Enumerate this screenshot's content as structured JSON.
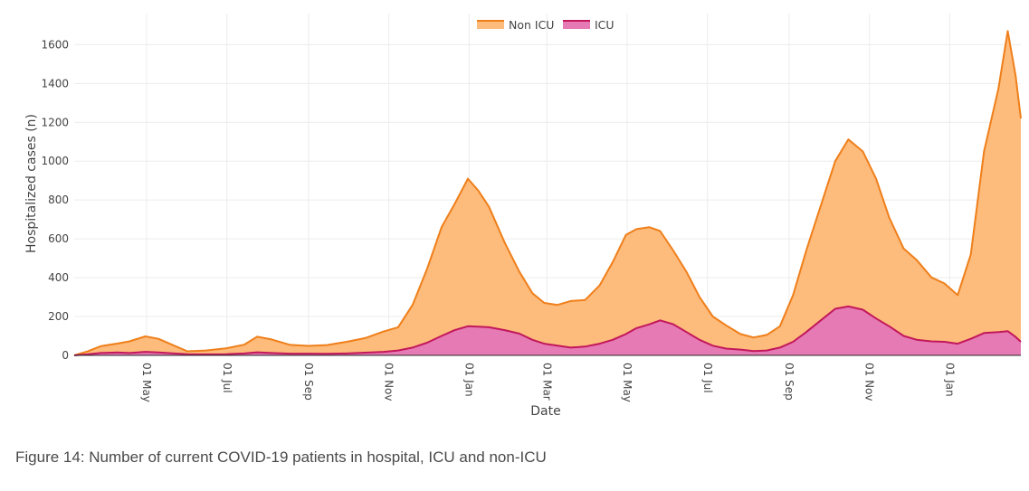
{
  "caption": "Figure 14: Number of current COVID-19 patients in hospital, ICU and non-ICU",
  "chart_data": {
    "type": "area",
    "stacked": true,
    "xlabel": "Date",
    "ylabel": "Hospitalized cases (n)",
    "x_range": [
      "2020-03-07",
      "2022-02-24"
    ],
    "ylim": [
      0,
      1760
    ],
    "y_ticks": [
      0,
      200,
      400,
      600,
      800,
      1000,
      1200,
      1400,
      1600
    ],
    "x_ticks": [
      {
        "date": "2020-05-01",
        "label": "01 May"
      },
      {
        "date": "2020-07-01",
        "label": "01 Jul"
      },
      {
        "date": "2020-09-01",
        "label": "01 Sep"
      },
      {
        "date": "2020-11-01",
        "label": "01 Nov"
      },
      {
        "date": "2021-01-01",
        "label": "01 Jan"
      },
      {
        "date": "2021-03-01",
        "label": "01 Mar"
      },
      {
        "date": "2021-05-01",
        "label": "01 May"
      },
      {
        "date": "2021-07-01",
        "label": "01 Jul"
      },
      {
        "date": "2021-09-01",
        "label": "01 Sep"
      },
      {
        "date": "2021-11-01",
        "label": "01 Nov"
      },
      {
        "date": "2022-01-01",
        "label": "01 Jan"
      }
    ],
    "grid": true,
    "legend": "top-center",
    "series": [
      {
        "name": "ICU",
        "color": "#c2185b",
        "fill": "#e57ab4",
        "points": [
          [
            "2020-03-07",
            0
          ],
          [
            "2020-03-17",
            5
          ],
          [
            "2020-03-27",
            12
          ],
          [
            "2020-04-08",
            15
          ],
          [
            "2020-04-18",
            12
          ],
          [
            "2020-04-30",
            18
          ],
          [
            "2020-05-10",
            15
          ],
          [
            "2020-05-22",
            10
          ],
          [
            "2020-06-01",
            6
          ],
          [
            "2020-06-15",
            5
          ],
          [
            "2020-06-30",
            6
          ],
          [
            "2020-07-14",
            10
          ],
          [
            "2020-07-24",
            16
          ],
          [
            "2020-08-04",
            12
          ],
          [
            "2020-08-18",
            9
          ],
          [
            "2020-09-01",
            9
          ],
          [
            "2020-09-15",
            8
          ],
          [
            "2020-09-30",
            10
          ],
          [
            "2020-10-14",
            14
          ],
          [
            "2020-10-28",
            18
          ],
          [
            "2020-11-08",
            25
          ],
          [
            "2020-11-19",
            40
          ],
          [
            "2020-11-30",
            65
          ],
          [
            "2020-12-11",
            100
          ],
          [
            "2020-12-21",
            130
          ],
          [
            "2020-12-31",
            150
          ],
          [
            "2021-01-08",
            148
          ],
          [
            "2021-01-16",
            145
          ],
          [
            "2021-01-28",
            130
          ],
          [
            "2021-02-08",
            112
          ],
          [
            "2021-02-18",
            80
          ],
          [
            "2021-02-27",
            60
          ],
          [
            "2021-03-09",
            50
          ],
          [
            "2021-03-19",
            40
          ],
          [
            "2021-03-30",
            45
          ],
          [
            "2021-04-10",
            60
          ],
          [
            "2021-04-20",
            80
          ],
          [
            "2021-04-30",
            110
          ],
          [
            "2021-05-08",
            140
          ],
          [
            "2021-05-18",
            160
          ],
          [
            "2021-05-26",
            180
          ],
          [
            "2021-06-05",
            160
          ],
          [
            "2021-06-15",
            120
          ],
          [
            "2021-06-25",
            80
          ],
          [
            "2021-07-05",
            50
          ],
          [
            "2021-07-15",
            35
          ],
          [
            "2021-07-26",
            30
          ],
          [
            "2021-08-05",
            22
          ],
          [
            "2021-08-15",
            25
          ],
          [
            "2021-08-25",
            40
          ],
          [
            "2021-09-04",
            70
          ],
          [
            "2021-09-14",
            120
          ],
          [
            "2021-09-25",
            180
          ],
          [
            "2021-10-06",
            240
          ],
          [
            "2021-10-16",
            252
          ],
          [
            "2021-10-27",
            235
          ],
          [
            "2021-11-06",
            190
          ],
          [
            "2021-11-16",
            150
          ],
          [
            "2021-11-27",
            100
          ],
          [
            "2021-12-07",
            80
          ],
          [
            "2021-12-18",
            72
          ],
          [
            "2021-12-28",
            70
          ],
          [
            "2022-01-07",
            60
          ],
          [
            "2022-01-17",
            85
          ],
          [
            "2022-01-27",
            115
          ],
          [
            "2022-02-07",
            120
          ],
          [
            "2022-02-14",
            125
          ],
          [
            "2022-02-20",
            95
          ],
          [
            "2022-02-24",
            70
          ]
        ]
      },
      {
        "name": "Non ICU",
        "color": "#ef7f1a",
        "fill": "#fdbb7c",
        "points": [
          [
            "2020-03-07",
            0
          ],
          [
            "2020-03-17",
            15
          ],
          [
            "2020-03-27",
            35
          ],
          [
            "2020-04-08",
            45
          ],
          [
            "2020-04-18",
            60
          ],
          [
            "2020-04-30",
            80
          ],
          [
            "2020-05-10",
            70
          ],
          [
            "2020-05-22",
            40
          ],
          [
            "2020-06-01",
            15
          ],
          [
            "2020-06-15",
            20
          ],
          [
            "2020-06-30",
            30
          ],
          [
            "2020-07-14",
            45
          ],
          [
            "2020-07-24",
            80
          ],
          [
            "2020-08-04",
            70
          ],
          [
            "2020-08-18",
            45
          ],
          [
            "2020-09-01",
            40
          ],
          [
            "2020-09-15",
            45
          ],
          [
            "2020-09-30",
            60
          ],
          [
            "2020-10-14",
            75
          ],
          [
            "2020-10-28",
            105
          ],
          [
            "2020-11-08",
            120
          ],
          [
            "2020-11-19",
            220
          ],
          [
            "2020-11-30",
            380
          ],
          [
            "2020-12-11",
            560
          ],
          [
            "2020-12-21",
            650
          ],
          [
            "2020-12-31",
            760
          ],
          [
            "2021-01-08",
            700
          ],
          [
            "2021-01-16",
            620
          ],
          [
            "2021-01-28",
            450
          ],
          [
            "2021-02-08",
            320
          ],
          [
            "2021-02-18",
            240
          ],
          [
            "2021-02-27",
            210
          ],
          [
            "2021-03-09",
            210
          ],
          [
            "2021-03-19",
            240
          ],
          [
            "2021-03-30",
            240
          ],
          [
            "2021-04-10",
            300
          ],
          [
            "2021-04-20",
            400
          ],
          [
            "2021-04-30",
            510
          ],
          [
            "2021-05-08",
            510
          ],
          [
            "2021-05-18",
            500
          ],
          [
            "2021-05-26",
            460
          ],
          [
            "2021-06-05",
            380
          ],
          [
            "2021-06-15",
            310
          ],
          [
            "2021-06-25",
            220
          ],
          [
            "2021-07-05",
            150
          ],
          [
            "2021-07-15",
            120
          ],
          [
            "2021-07-26",
            80
          ],
          [
            "2021-08-05",
            70
          ],
          [
            "2021-08-15",
            80
          ],
          [
            "2021-08-25",
            110
          ],
          [
            "2021-09-04",
            240
          ],
          [
            "2021-09-14",
            420
          ],
          [
            "2021-09-25",
            590
          ],
          [
            "2021-10-06",
            760
          ],
          [
            "2021-10-16",
            860
          ],
          [
            "2021-10-27",
            815
          ],
          [
            "2021-11-06",
            720
          ],
          [
            "2021-11-16",
            560
          ],
          [
            "2021-11-27",
            450
          ],
          [
            "2021-12-07",
            410
          ],
          [
            "2021-12-18",
            330
          ],
          [
            "2021-12-28",
            300
          ],
          [
            "2022-01-07",
            250
          ],
          [
            "2022-01-17",
            435
          ],
          [
            "2022-01-27",
            935
          ],
          [
            "2022-02-07",
            1255
          ],
          [
            "2022-02-14",
            1545
          ],
          [
            "2022-02-20",
            1345
          ],
          [
            "2022-02-24",
            1150
          ]
        ]
      }
    ]
  }
}
